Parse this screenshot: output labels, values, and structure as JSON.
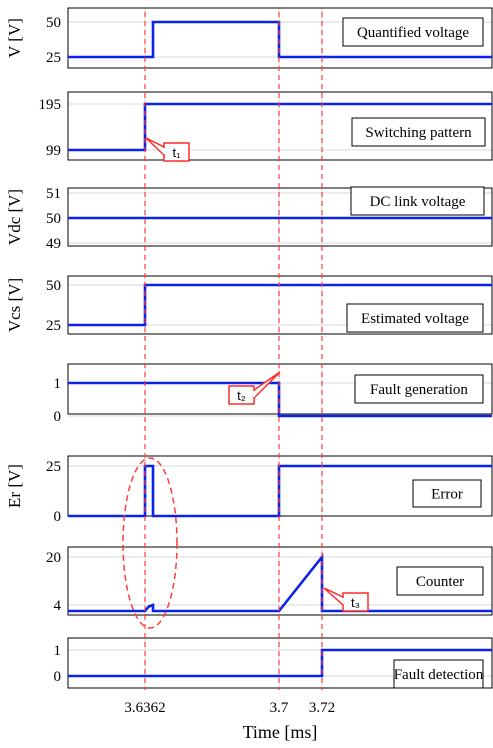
{
  "chart_data": {
    "type": "line",
    "xlabel": "Time [ms]",
    "x_ticks": [
      "3.6362",
      "3.7",
      "3.72"
    ],
    "markers": [
      3.6362,
      3.7,
      3.72
    ],
    "x_range": [
      3.6,
      3.8
    ],
    "panels": [
      {
        "id": "quantified",
        "ylabel": "V [V]",
        "box_label": "Quantified voltage",
        "yticks": [
          "50",
          "25"
        ],
        "ytick_values": [
          50,
          25
        ],
        "ylim": [
          15,
          60
        ],
        "points": [
          [
            3.6,
            25
          ],
          [
            3.64,
            25
          ],
          [
            3.64,
            50
          ],
          [
            3.7,
            50
          ],
          [
            3.7,
            25
          ],
          [
            3.8,
            25
          ]
        ]
      },
      {
        "id": "switching",
        "ylabel": "",
        "box_label": "Switching pattern",
        "yticks": [
          "195",
          "99"
        ],
        "ytick_values": [
          195,
          99
        ],
        "ylim": [
          80,
          215
        ],
        "points": [
          [
            3.6,
            99
          ],
          [
            3.6362,
            99
          ],
          [
            3.6362,
            195
          ],
          [
            3.8,
            195
          ]
        ],
        "callout": {
          "text": "t₁",
          "x": 3.6362,
          "y": 99
        }
      },
      {
        "id": "dclink",
        "ylabel": "Vdc [V]",
        "box_label": "DC link voltage",
        "yticks": [
          "51",
          "50",
          "49"
        ],
        "ytick_values": [
          51,
          50,
          49
        ],
        "ylim": [
          49,
          51
        ],
        "points": [
          [
            3.6,
            50
          ],
          [
            3.8,
            50
          ]
        ]
      },
      {
        "id": "estimated",
        "ylabel": "Vcs [V]",
        "box_label": "Estimated voltage",
        "yticks": [
          "50",
          "25"
        ],
        "ytick_values": [
          50,
          25
        ],
        "ylim": [
          15,
          60
        ],
        "points": [
          [
            3.6,
            25
          ],
          [
            3.6362,
            25
          ],
          [
            3.6362,
            50
          ],
          [
            3.8,
            50
          ]
        ]
      },
      {
        "id": "faultgen",
        "ylabel": "",
        "box_label": "Fault generation",
        "yticks": [
          "1",
          "0"
        ],
        "ytick_values": [
          1,
          0
        ],
        "ylim": [
          -0.3,
          1.3
        ],
        "points": [
          [
            3.6,
            1
          ],
          [
            3.7,
            1
          ],
          [
            3.7,
            0
          ],
          [
            3.8,
            0
          ]
        ],
        "callout": {
          "text": "t₂",
          "x": 3.7,
          "y": 0
        }
      },
      {
        "id": "error",
        "ylabel": "Er [V]",
        "box_label": "Error",
        "yticks": [
          "25",
          "0"
        ],
        "ytick_values": [
          25,
          0
        ],
        "ylim": [
          -5,
          30
        ],
        "points": [
          [
            3.6,
            0
          ],
          [
            3.6362,
            0
          ],
          [
            3.6362,
            25
          ],
          [
            3.64,
            25
          ],
          [
            3.64,
            0
          ],
          [
            3.7,
            0
          ],
          [
            3.7,
            25
          ],
          [
            3.8,
            25
          ]
        ]
      },
      {
        "id": "counter",
        "ylabel": "",
        "box_label": "Counter",
        "yticks": [
          "20",
          "4"
        ],
        "ytick_values": [
          20,
          4
        ],
        "ylim": [
          -1,
          22
        ],
        "points": [
          [
            3.6,
            2
          ],
          [
            3.6362,
            2
          ],
          [
            3.638,
            3.5
          ],
          [
            3.64,
            4
          ],
          [
            3.64,
            2
          ],
          [
            3.7,
            2
          ],
          [
            3.72,
            20
          ],
          [
            3.72,
            2
          ],
          [
            3.8,
            2
          ]
        ],
        "callout": {
          "text": "t₃",
          "x": 3.72,
          "y": 8
        }
      },
      {
        "id": "faultdet",
        "ylabel": "",
        "box_label": "Fault detection",
        "yticks": [
          "1",
          "0"
        ],
        "ytick_values": [
          1,
          0
        ],
        "ylim": [
          -0.3,
          1.3
        ],
        "points": [
          [
            3.6,
            0
          ],
          [
            3.72,
            0
          ],
          [
            3.72,
            1
          ],
          [
            3.8,
            1
          ]
        ]
      }
    ]
  }
}
